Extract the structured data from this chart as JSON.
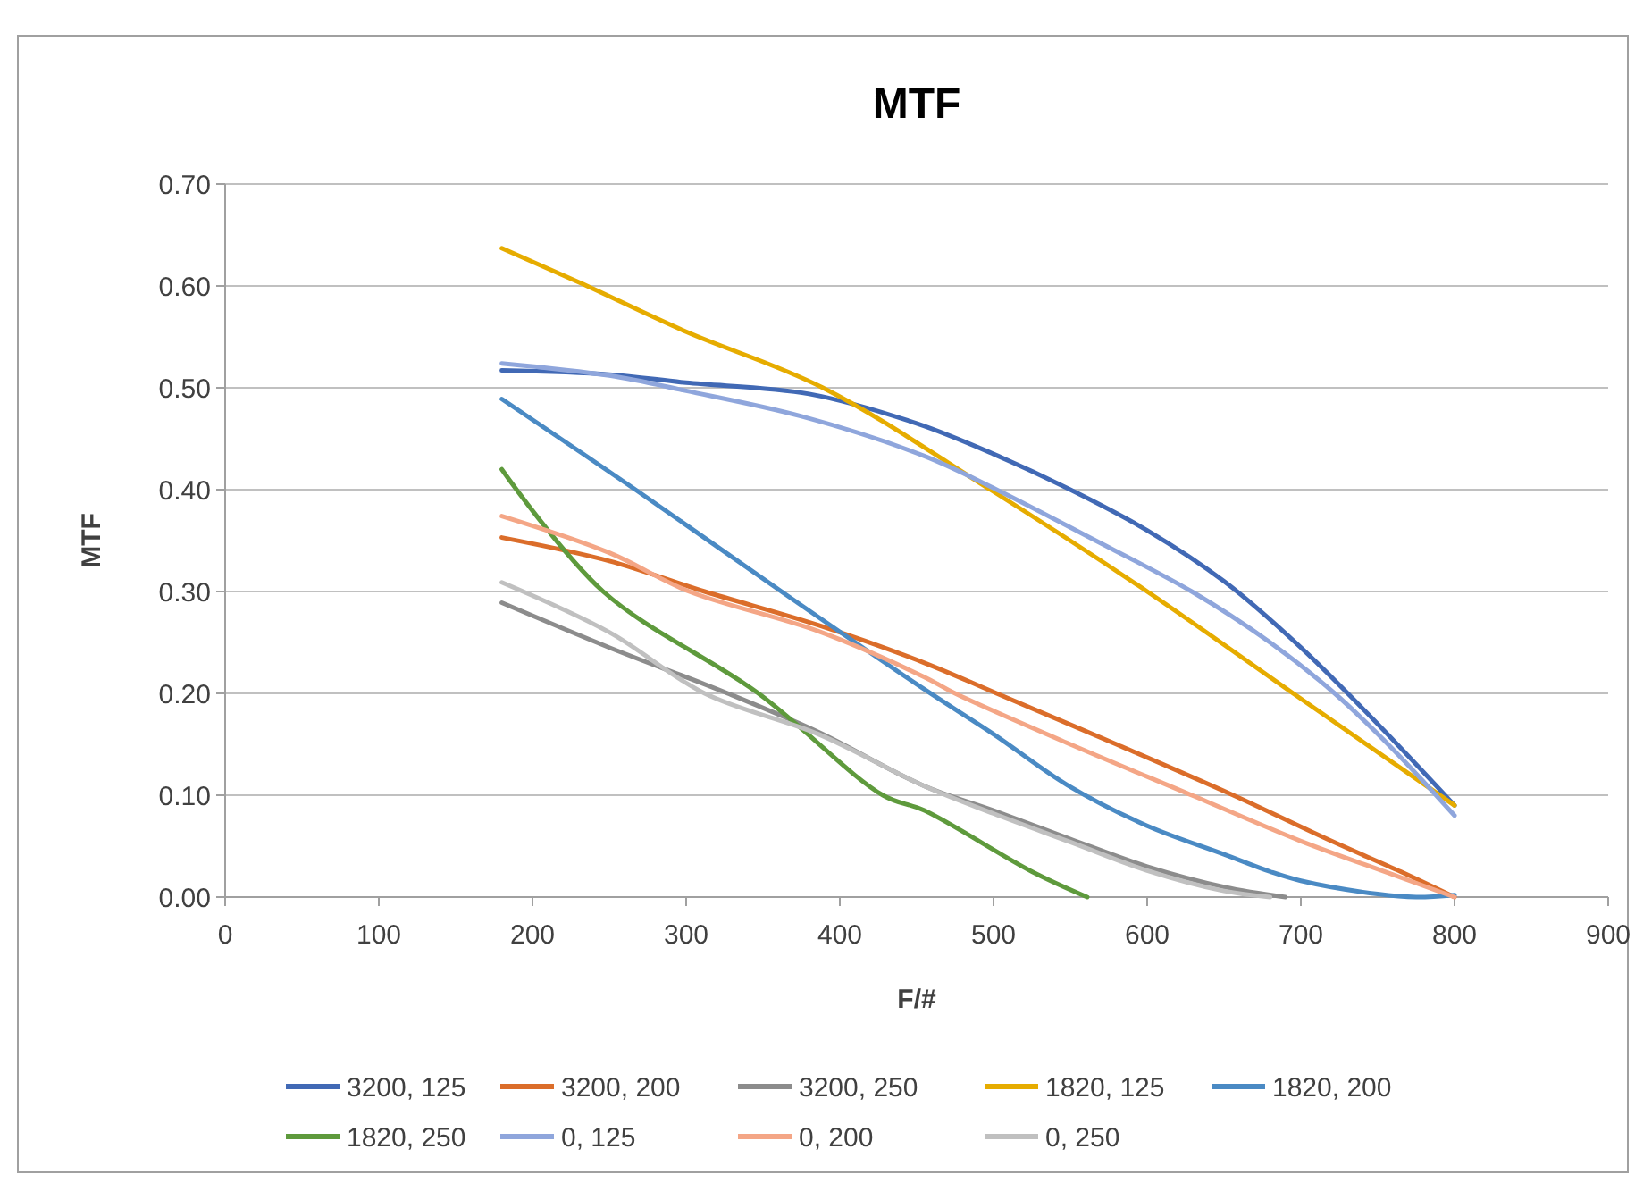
{
  "chart_data": {
    "type": "line",
    "title": "MTF",
    "xlabel": "F/#",
    "ylabel": "MTF",
    "xlim": [
      0,
      900
    ],
    "xticks": [
      0,
      100,
      200,
      300,
      400,
      500,
      600,
      700,
      800,
      900
    ],
    "ylim": [
      0,
      0.7
    ],
    "yticks": [
      {
        "value": 0,
        "label": "0.00"
      },
      {
        "value": 0.1,
        "label": "0.10"
      },
      {
        "value": 0.2,
        "label": "0.20"
      },
      {
        "value": 0.3,
        "label": "0.30"
      },
      {
        "value": 0.4,
        "label": "0.40"
      },
      {
        "value": 0.5,
        "label": "0.50"
      },
      {
        "value": 0.6,
        "label": "0.60"
      },
      {
        "value": 0.7,
        "label": "0.70"
      }
    ],
    "grid": "y",
    "legend": "bottom",
    "marker": "none",
    "line_style": "solid",
    "series": [
      {
        "name": "3200, 125",
        "color": "#4169b5",
        "x": [
          180,
          250,
          300,
          380,
          450,
          500,
          550,
          600,
          650,
          700,
          750,
          800
        ],
        "values": [
          0.517,
          0.513,
          0.505,
          0.494,
          0.465,
          0.435,
          0.4,
          0.36,
          0.31,
          0.245,
          0.17,
          0.09
        ]
      },
      {
        "name": "3200, 200",
        "color": "#db6d2a",
        "x": [
          180,
          250,
          312,
          386,
          455,
          502,
          580,
          656,
          720,
          765,
          800
        ],
        "values": [
          0.353,
          0.33,
          0.3,
          0.267,
          0.23,
          0.2,
          0.15,
          0.1,
          0.055,
          0.025,
          0.0
        ]
      },
      {
        "name": "3200, 250",
        "color": "#8c8c8c",
        "x": [
          180,
          250,
          327,
          386,
          455,
          500,
          550,
          600,
          650,
          690
        ],
        "values": [
          0.289,
          0.245,
          0.2,
          0.162,
          0.109,
          0.085,
          0.057,
          0.03,
          0.01,
          0.0
        ]
      },
      {
        "name": "1820, 125",
        "color": "#e6ac00",
        "x": [
          180,
          231,
          300,
          389,
          498,
          600,
          695,
          800
        ],
        "values": [
          0.637,
          0.603,
          0.555,
          0.5,
          0.4,
          0.3,
          0.2,
          0.09
        ]
      },
      {
        "name": "1820, 200",
        "color": "#4a8ac4",
        "x": [
          180,
          267,
          362,
          455,
          500,
          548,
          600,
          650,
          680,
          700,
          750,
          775,
          800
        ],
        "values": [
          0.489,
          0.4,
          0.3,
          0.204,
          0.16,
          0.11,
          0.07,
          0.042,
          0.025,
          0.016,
          0.003,
          0.0,
          0.002
        ]
      },
      {
        "name": "1820, 250",
        "color": "#5e9a3c",
        "x": [
          180,
          246,
          347,
          428,
          455,
          525,
          561
        ],
        "values": [
          0.42,
          0.3,
          0.2,
          0.1,
          0.085,
          0.025,
          0.0
        ]
      },
      {
        "name": "0, 125",
        "color": "#8fa6dc",
        "x": [
          180,
          250,
          300,
          375,
          455,
          502,
          560,
          629,
          680,
          722,
          760,
          800
        ],
        "values": [
          0.524,
          0.512,
          0.497,
          0.472,
          0.433,
          0.4,
          0.355,
          0.3,
          0.25,
          0.2,
          0.145,
          0.08
        ]
      },
      {
        "name": "0, 200",
        "color": "#f4a686",
        "x": [
          180,
          250,
          302,
          386,
          455,
          475,
          550,
          629,
          700,
          760,
          800
        ],
        "values": [
          0.374,
          0.338,
          0.3,
          0.261,
          0.216,
          0.2,
          0.15,
          0.1,
          0.055,
          0.022,
          0.0
        ]
      },
      {
        "name": "0, 250",
        "color": "#c0c0c0",
        "x": [
          180,
          250,
          312,
          386,
          455,
          500,
          550,
          600,
          650,
          680
        ],
        "values": [
          0.309,
          0.26,
          0.2,
          0.16,
          0.109,
          0.082,
          0.054,
          0.026,
          0.006,
          0.0
        ]
      }
    ]
  }
}
